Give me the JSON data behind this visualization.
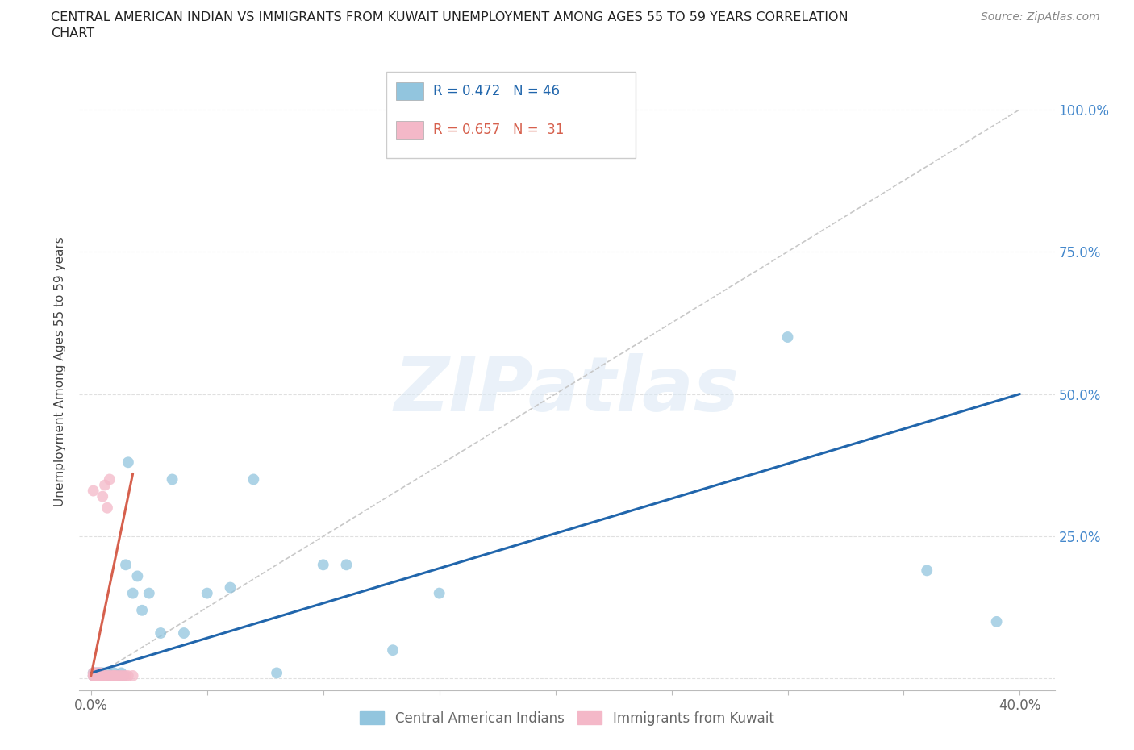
{
  "title_line1": "CENTRAL AMERICAN INDIAN VS IMMIGRANTS FROM KUWAIT UNEMPLOYMENT AMONG AGES 55 TO 59 YEARS CORRELATION",
  "title_line2": "CHART",
  "source": "Source: ZipAtlas.com",
  "ylabel_label": "Unemployment Among Ages 55 to 59 years",
  "x_ticks": [
    0.0,
    0.05,
    0.1,
    0.15,
    0.2,
    0.25,
    0.3,
    0.35,
    0.4
  ],
  "x_tick_labels": [
    "0.0%",
    "",
    "",
    "",
    "",
    "",
    "",
    "",
    "40.0%"
  ],
  "y_ticks": [
    0.0,
    0.25,
    0.5,
    0.75,
    1.0
  ],
  "y_tick_labels": [
    "",
    "25.0%",
    "50.0%",
    "75.0%",
    "100.0%"
  ],
  "xlim": [
    -0.005,
    0.415
  ],
  "ylim": [
    -0.02,
    1.1
  ],
  "blue_scatter_color": "#92c5de",
  "pink_scatter_color": "#f4b8c8",
  "blue_line_color": "#2166ac",
  "pink_line_color": "#d6604d",
  "ref_line_color": "#c8c8c8",
  "legend_blue_R": "R = 0.472",
  "legend_blue_N": "N = 46",
  "legend_pink_R": "R = 0.657",
  "legend_pink_N": "N =  31",
  "legend_label_blue": "Central American Indians",
  "legend_label_pink": "Immigrants from Kuwait",
  "blue_x": [
    0.001,
    0.001,
    0.002,
    0.002,
    0.003,
    0.003,
    0.003,
    0.004,
    0.004,
    0.005,
    0.005,
    0.005,
    0.006,
    0.006,
    0.007,
    0.007,
    0.008,
    0.008,
    0.009,
    0.01,
    0.01,
    0.011,
    0.012,
    0.013,
    0.014,
    0.015,
    0.016,
    0.018,
    0.02,
    0.022,
    0.025,
    0.03,
    0.035,
    0.04,
    0.05,
    0.06,
    0.07,
    0.08,
    0.1,
    0.11,
    0.13,
    0.15,
    0.23,
    0.3,
    0.36,
    0.39
  ],
  "blue_y": [
    0.005,
    0.01,
    0.005,
    0.01,
    0.005,
    0.01,
    0.005,
    0.005,
    0.01,
    0.005,
    0.005,
    0.01,
    0.005,
    0.005,
    0.005,
    0.01,
    0.005,
    0.005,
    0.005,
    0.005,
    0.01,
    0.005,
    0.005,
    0.01,
    0.005,
    0.2,
    0.38,
    0.15,
    0.18,
    0.12,
    0.15,
    0.08,
    0.35,
    0.08,
    0.15,
    0.16,
    0.35,
    0.01,
    0.2,
    0.2,
    0.05,
    0.15,
    1.0,
    0.6,
    0.19,
    0.1
  ],
  "pink_x": [
    0.001,
    0.001,
    0.001,
    0.001,
    0.002,
    0.002,
    0.002,
    0.003,
    0.003,
    0.003,
    0.004,
    0.004,
    0.005,
    0.005,
    0.005,
    0.006,
    0.006,
    0.007,
    0.007,
    0.008,
    0.008,
    0.009,
    0.01,
    0.01,
    0.011,
    0.012,
    0.013,
    0.014,
    0.015,
    0.016,
    0.018
  ],
  "pink_y": [
    0.005,
    0.01,
    0.005,
    0.33,
    0.005,
    0.01,
    0.005,
    0.005,
    0.01,
    0.005,
    0.005,
    0.01,
    0.005,
    0.005,
    0.32,
    0.005,
    0.34,
    0.3,
    0.005,
    0.005,
    0.35,
    0.005,
    0.005,
    0.005,
    0.005,
    0.005,
    0.005,
    0.005,
    0.005,
    0.005,
    0.005
  ],
  "blue_line_x": [
    0.0,
    0.4
  ],
  "blue_line_y": [
    0.01,
    0.5
  ],
  "pink_line_x": [
    0.0,
    0.018
  ],
  "pink_line_y": [
    0.005,
    0.36
  ],
  "ref_line_x": [
    0.0,
    0.4
  ],
  "ref_line_y": [
    0.0,
    1.0
  ],
  "watermark_text": "ZIPatlas",
  "background_color": "#ffffff",
  "grid_color": "#e0e0e0",
  "title_color": "#222222",
  "axis_label_color": "#444444",
  "tick_label_color": "#666666",
  "right_tick_color": "#4488cc"
}
